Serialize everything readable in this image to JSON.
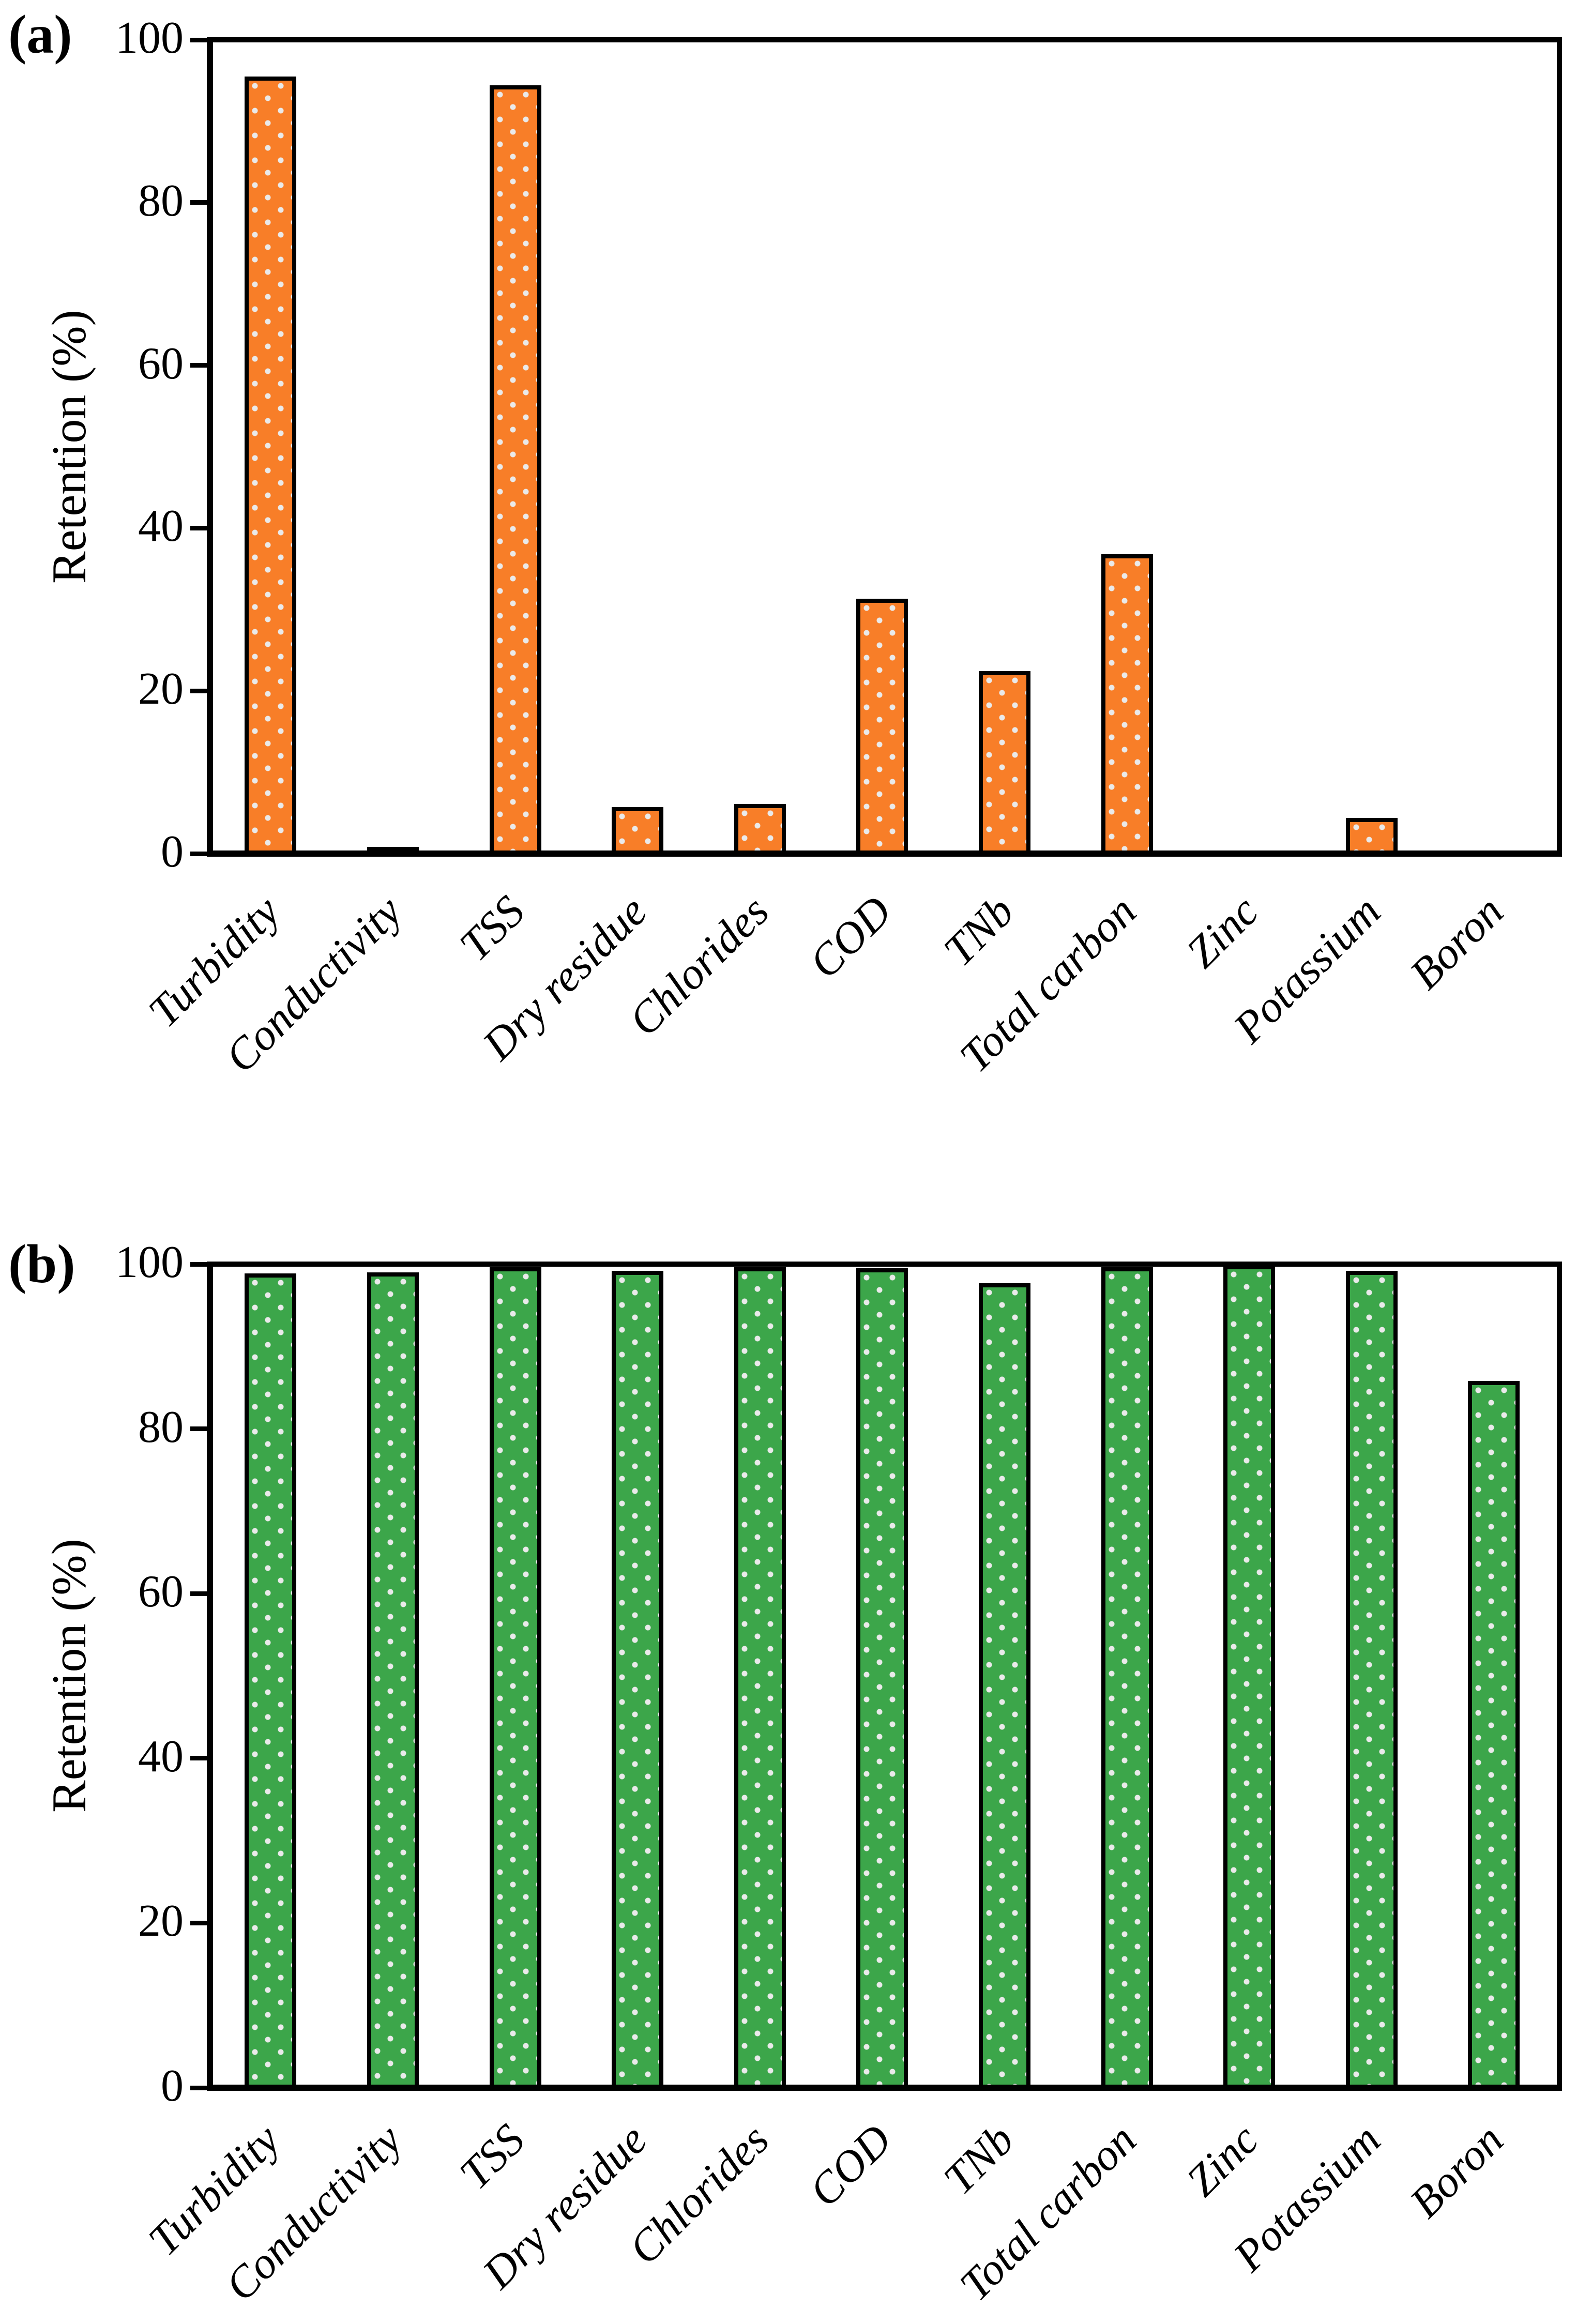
{
  "figure": {
    "description": "Two stacked bar charts of retention percentages for water quality parameters",
    "axis_color": "#000000",
    "background_color": "#FFFFFF",
    "dot_pattern_color": "#EAEAEA"
  },
  "chart_data": [
    {
      "type": "bar",
      "panel_label": "(a)",
      "title": "",
      "xlabel": "",
      "ylabel": "Retention (%)",
      "ylim": [
        0,
        100
      ],
      "yticks": [
        0,
        20,
        40,
        60,
        80,
        100
      ],
      "grid": false,
      "legend_position": "none",
      "bar_fill": "#F87E28",
      "bar_border_color": "#000000",
      "bar_pattern": "white-dots",
      "categories": [
        "Turbidity",
        "Conductivity",
        "TSS",
        "Dry residue",
        "Chlorides",
        "COD",
        "TNb",
        "Total carbon",
        "Zinc",
        "Potassium",
        "Boron"
      ],
      "values": [
        95.5,
        0.8,
        94.4,
        5.7,
        6.1,
        31.3,
        22.4,
        36.8,
        0,
        4.4,
        0
      ]
    },
    {
      "type": "bar",
      "panel_label": "(b)",
      "title": "",
      "xlabel": "",
      "ylabel": "Retention (%)",
      "ylim": [
        0,
        100
      ],
      "yticks": [
        0,
        20,
        40,
        60,
        80,
        100
      ],
      "grid": false,
      "legend_position": "none",
      "bar_fill": "#3CA64A",
      "bar_border_color": "#000000",
      "bar_pattern": "white-dots",
      "categories": [
        "Turbidity",
        "Conductivity",
        "TSS",
        "Dry residue",
        "Chlorides",
        "COD",
        "TNb",
        "Total carbon",
        "Zinc",
        "Potassium",
        "Boron"
      ],
      "values": [
        98.9,
        99.0,
        99.6,
        99.2,
        99.6,
        99.5,
        97.7,
        99.6,
        99.9,
        99.2,
        85.8
      ]
    }
  ]
}
